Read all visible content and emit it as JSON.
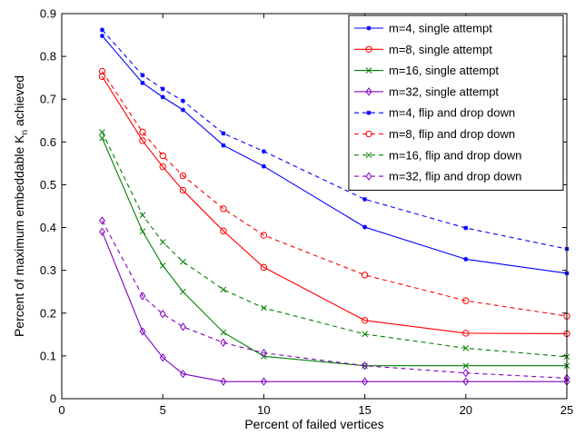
{
  "chart_data": {
    "type": "line",
    "title": "",
    "xlabel": "Percent of failed vertices",
    "ylabel": "Percent of maximum embeddable K",
    "ylabel_subscript": "n",
    "ylabel_suffix": " achieved",
    "xlim": [
      0,
      25
    ],
    "ylim": [
      0,
      0.9
    ],
    "xticks": [
      0,
      5,
      10,
      15,
      20,
      25
    ],
    "yticks": [
      0,
      0.1,
      0.2,
      0.3,
      0.4,
      0.5,
      0.6,
      0.7,
      0.8,
      0.9
    ],
    "xtick_labels": [
      "0",
      "5",
      "10",
      "15",
      "20",
      "25"
    ],
    "ytick_labels": [
      "0",
      "0.1",
      "0.2",
      "0.3",
      "0.4",
      "0.5",
      "0.6",
      "0.7",
      "0.8",
      "0.9"
    ],
    "grid": false,
    "legend_position": "top-right",
    "x": [
      2,
      4,
      5,
      6,
      8,
      10,
      15,
      20,
      25
    ],
    "series": [
      {
        "name": "m=4, single attempt",
        "color": "#0000ff",
        "marker": "star",
        "dash": "solid",
        "values": [
          0.848,
          0.738,
          0.705,
          0.675,
          0.592,
          0.543,
          0.401,
          0.326,
          0.293
        ]
      },
      {
        "name": "m=8, single attempt",
        "color": "#ff0000",
        "marker": "circle",
        "dash": "solid",
        "values": [
          0.753,
          0.603,
          0.542,
          0.487,
          0.392,
          0.307,
          0.183,
          0.153,
          0.152
        ]
      },
      {
        "name": "m=16, single attempt",
        "color": "#008000",
        "marker": "x",
        "dash": "solid",
        "values": [
          0.609,
          0.391,
          0.311,
          0.25,
          0.155,
          0.099,
          0.077,
          0.077,
          0.077
        ]
      },
      {
        "name": "m=32, single attempt",
        "color": "#8000c0",
        "marker": "diamond",
        "dash": "solid",
        "values": [
          0.39,
          0.157,
          0.096,
          0.058,
          0.04,
          0.04,
          0.04,
          0.04,
          0.04
        ]
      },
      {
        "name": "m=4, flip and drop down",
        "color": "#0000ff",
        "marker": "star",
        "dash": "dashed",
        "values": [
          0.862,
          0.756,
          0.724,
          0.696,
          0.62,
          0.578,
          0.466,
          0.399,
          0.35
        ]
      },
      {
        "name": "m=8, flip and drop down",
        "color": "#ff0000",
        "marker": "circle",
        "dash": "dashed",
        "values": [
          0.765,
          0.623,
          0.568,
          0.521,
          0.444,
          0.382,
          0.289,
          0.229,
          0.193
        ]
      },
      {
        "name": "m=16, flip and drop down",
        "color": "#008000",
        "marker": "x",
        "dash": "dashed",
        "values": [
          0.623,
          0.429,
          0.366,
          0.32,
          0.255,
          0.212,
          0.151,
          0.118,
          0.098
        ]
      },
      {
        "name": "m=32, flip and drop down",
        "color": "#8000c0",
        "marker": "diamond",
        "dash": "dashed",
        "values": [
          0.416,
          0.24,
          0.198,
          0.168,
          0.131,
          0.107,
          0.077,
          0.06,
          0.048
        ]
      }
    ]
  }
}
